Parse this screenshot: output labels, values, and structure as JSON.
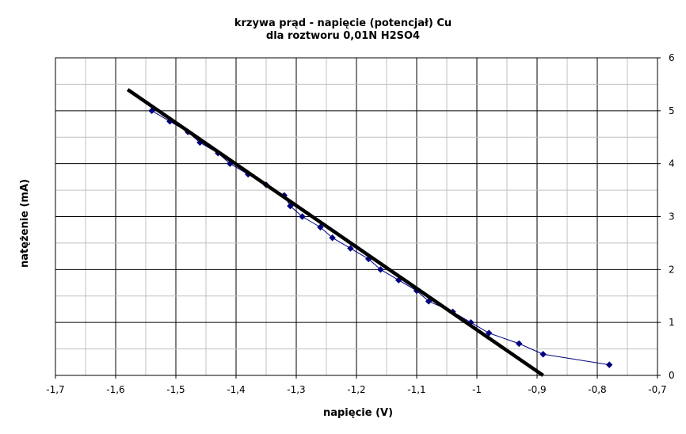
{
  "chart_data": {
    "type": "scatter",
    "title": [
      "krzywa prąd - napięcie (potencjał) Cu",
      "dla roztworu 0,01N H2SO4"
    ],
    "xlabel": "napięcie (V)",
    "ylabel": "natężenie (mA)",
    "xlim": [
      -1.7,
      -0.7
    ],
    "ylim": [
      0,
      6
    ],
    "x_ticks": [
      "-1,7",
      "-1,6",
      "-1,5",
      "-1,4",
      "-1,3",
      "-1,2",
      "-1,1",
      "-1",
      "-0,9",
      "-0,8",
      "-0,7"
    ],
    "y_ticks": [
      "0",
      "1",
      "2",
      "3",
      "4",
      "5",
      "6"
    ],
    "grid": true,
    "y_axis_side": "right",
    "series": [
      {
        "style": "line-with-markers",
        "color": "#000080",
        "x": [
          -1.54,
          -1.51,
          -1.48,
          -1.46,
          -1.43,
          -1.41,
          -1.38,
          -1.35,
          -1.32,
          -1.31,
          -1.29,
          -1.26,
          -1.24,
          -1.21,
          -1.18,
          -1.16,
          -1.13,
          -1.1,
          -1.08,
          -1.04,
          -1.01,
          -0.98,
          -0.93,
          -0.89,
          -0.78
        ],
        "y": [
          5.0,
          4.8,
          4.6,
          4.4,
          4.2,
          4.0,
          3.8,
          3.6,
          3.4,
          3.2,
          3.0,
          2.8,
          2.6,
          2.4,
          2.2,
          2.0,
          1.8,
          1.6,
          1.4,
          1.2,
          1.0,
          0.8,
          0.6,
          0.4,
          0.2
        ]
      },
      {
        "style": "trendline",
        "color": "#000000",
        "x": [
          -1.58,
          -0.89
        ],
        "y": [
          5.4,
          0.0
        ]
      }
    ]
  }
}
